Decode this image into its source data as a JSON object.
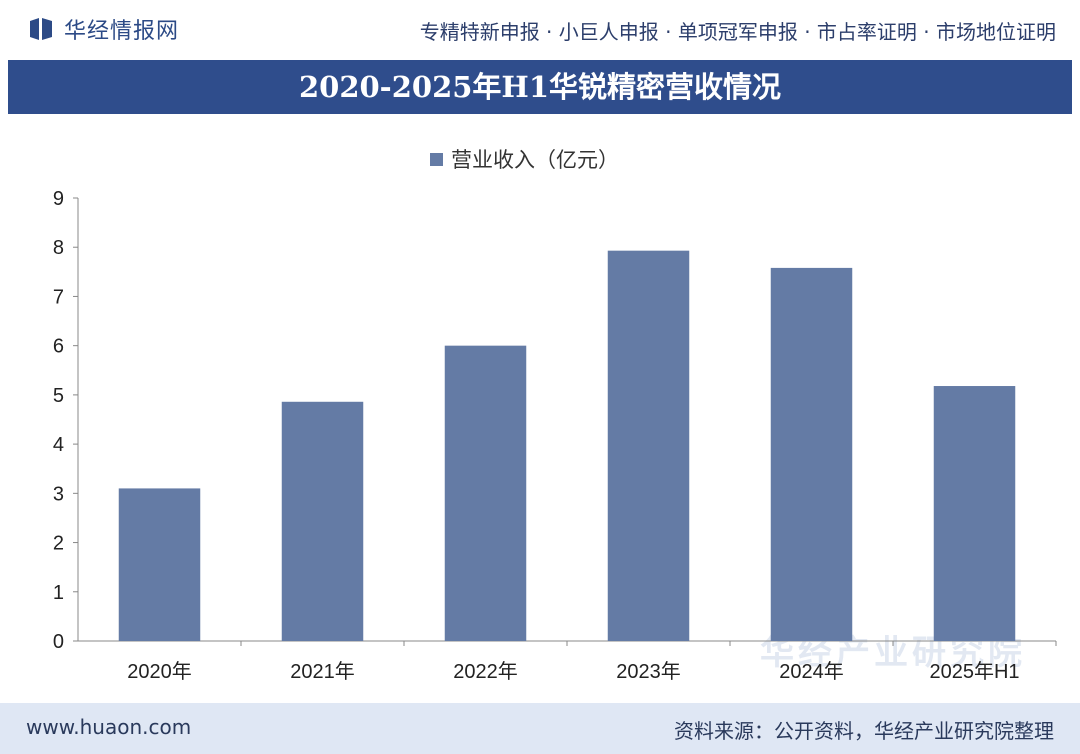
{
  "header": {
    "logo_text": "华经情报网",
    "services": "专精特新申报 · 小巨人申报 · 单项冠军申报 · 市占率证明 · 市场地位证明"
  },
  "chart_data": {
    "type": "bar",
    "title": "2020-2025年H1华锐精密营收情况",
    "categories": [
      "2020年",
      "2021年",
      "2022年",
      "2023年",
      "2024年",
      "2025年H1"
    ],
    "series": [
      {
        "name": "营业收入（亿元）",
        "values": [
          3.1,
          4.86,
          6.0,
          7.93,
          7.58,
          5.18
        ]
      }
    ],
    "ylim": [
      0,
      9
    ],
    "yticks": [
      "0",
      "1",
      "2",
      "3",
      "4",
      "5",
      "6",
      "7",
      "8",
      "9"
    ],
    "legend_position": "top-center",
    "grid": false,
    "bar_color": "#647ba5"
  },
  "watermark": {
    "brand": "华经产业研究院",
    "url": "www.huaon.com"
  },
  "footer": {
    "site": "www.huaon.com",
    "source": "资料来源：公开资料，华经产业研究院整理"
  }
}
